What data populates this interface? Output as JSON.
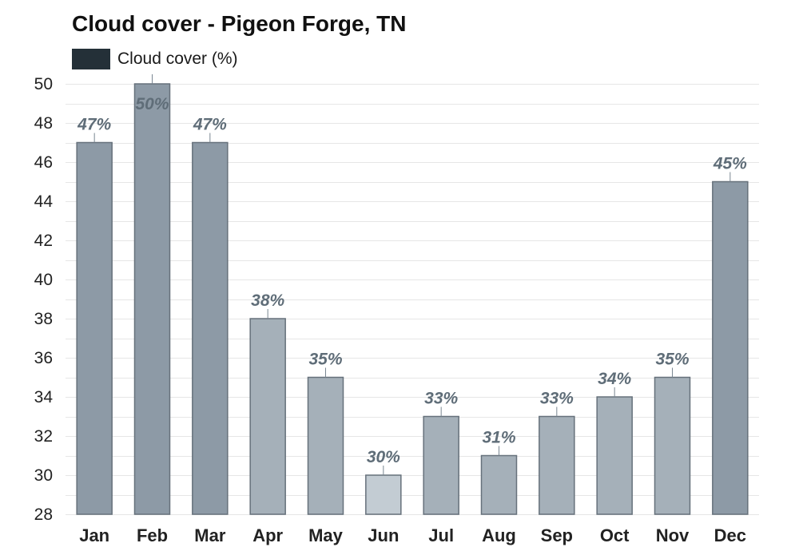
{
  "title": "Cloud cover - Pigeon Forge, TN",
  "legend": {
    "label": "Cloud cover (%)",
    "color": "#243038"
  },
  "chart_data": {
    "type": "bar",
    "title": "Cloud cover - Pigeon Forge, TN",
    "xlabel": "",
    "ylabel": "",
    "categories": [
      "Jan",
      "Feb",
      "Mar",
      "Apr",
      "May",
      "Jun",
      "Jul",
      "Aug",
      "Sep",
      "Oct",
      "Nov",
      "Dec"
    ],
    "series": [
      {
        "name": "Cloud cover (%)",
        "values": [
          47,
          50,
          47,
          38,
          35,
          30,
          33,
          31,
          33,
          34,
          35,
          45
        ],
        "data_labels": [
          "47%",
          "50%",
          "47%",
          "38%",
          "35%",
          "30%",
          "33%",
          "31%",
          "33%",
          "34%",
          "35%",
          "45%"
        ]
      }
    ],
    "ylim": [
      28,
      50
    ],
    "yticks": [
      "28",
      "30",
      "32",
      "34",
      "36",
      "38",
      "40",
      "42",
      "44",
      "46",
      "48",
      "50"
    ],
    "grid": true,
    "legend_position": "top-left",
    "colors": {
      "dark": "#8d9aa6",
      "medium": "#a5b0b9",
      "light": "#c3ccd3",
      "bar_edge": "#66717b",
      "grid": "#e6e6e6",
      "data_label": "#5f6d78"
    }
  }
}
